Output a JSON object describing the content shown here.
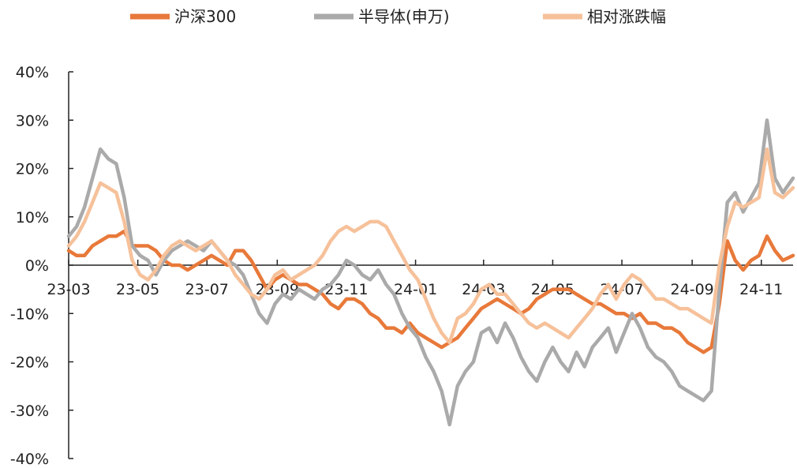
{
  "chart_data": {
    "type": "line",
    "title": "",
    "xlabel": "",
    "ylabel": "",
    "ylim": [
      -40,
      40
    ],
    "yticks": [
      -40,
      -30,
      -20,
      -10,
      0,
      10,
      20,
      30,
      40
    ],
    "ytick_labels": [
      "-40%",
      "-30%",
      "-20%",
      "-10%",
      "0%",
      "10%",
      "20%",
      "30%",
      "40%"
    ],
    "xlim": [
      "2023-03-01",
      "2024-11-29"
    ],
    "xticks": [
      "2023-03-01",
      "2023-05-01",
      "2023-07-01",
      "2023-09-01",
      "2023-11-01",
      "2024-01-01",
      "2024-03-01",
      "2024-05-01",
      "2024-07-01",
      "2024-09-01",
      "2024-11-01"
    ],
    "xtick_labels": [
      "23-03",
      "23-05",
      "23-07",
      "23-09",
      "23-11",
      "24-01",
      "24-03",
      "24-05",
      "24-07",
      "24-09",
      "24-11"
    ],
    "legend_position": "top",
    "grid": false,
    "series": [
      {
        "name": "沪深300",
        "color": "#E8793A",
        "points": [
          [
            "2023-03-01",
            3
          ],
          [
            "2023-03-08",
            2
          ],
          [
            "2023-03-15",
            2
          ],
          [
            "2023-03-22",
            4
          ],
          [
            "2023-03-29",
            5
          ],
          [
            "2023-04-05",
            6
          ],
          [
            "2023-04-12",
            6
          ],
          [
            "2023-04-19",
            7
          ],
          [
            "2023-04-26",
            4
          ],
          [
            "2023-05-03",
            4
          ],
          [
            "2023-05-10",
            4
          ],
          [
            "2023-05-17",
            3
          ],
          [
            "2023-05-24",
            1
          ],
          [
            "2023-05-31",
            0
          ],
          [
            "2023-06-07",
            0
          ],
          [
            "2023-06-14",
            -1
          ],
          [
            "2023-06-21",
            0
          ],
          [
            "2023-06-28",
            1
          ],
          [
            "2023-07-05",
            2
          ],
          [
            "2023-07-12",
            1
          ],
          [
            "2023-07-19",
            0
          ],
          [
            "2023-07-26",
            3
          ],
          [
            "2023-08-02",
            3
          ],
          [
            "2023-08-09",
            1
          ],
          [
            "2023-08-16",
            -2
          ],
          [
            "2023-08-23",
            -5
          ],
          [
            "2023-08-30",
            -3
          ],
          [
            "2023-09-06",
            -2
          ],
          [
            "2023-09-13",
            -3
          ],
          [
            "2023-09-20",
            -4
          ],
          [
            "2023-09-27",
            -4
          ],
          [
            "2023-10-04",
            -5
          ],
          [
            "2023-10-11",
            -6
          ],
          [
            "2023-10-18",
            -8
          ],
          [
            "2023-10-25",
            -9
          ],
          [
            "2023-11-01",
            -7
          ],
          [
            "2023-11-08",
            -7
          ],
          [
            "2023-11-15",
            -8
          ],
          [
            "2023-11-22",
            -10
          ],
          [
            "2023-11-29",
            -11
          ],
          [
            "2023-12-06",
            -13
          ],
          [
            "2023-12-13",
            -13
          ],
          [
            "2023-12-20",
            -14
          ],
          [
            "2023-12-27",
            -12
          ],
          [
            "2024-01-03",
            -14
          ],
          [
            "2024-01-10",
            -15
          ],
          [
            "2024-01-17",
            -16
          ],
          [
            "2024-01-24",
            -17
          ],
          [
            "2024-01-31",
            -16
          ],
          [
            "2024-02-07",
            -15
          ],
          [
            "2024-02-14",
            -13
          ],
          [
            "2024-02-21",
            -11
          ],
          [
            "2024-02-28",
            -9
          ],
          [
            "2024-03-06",
            -8
          ],
          [
            "2024-03-13",
            -7
          ],
          [
            "2024-03-20",
            -8
          ],
          [
            "2024-03-27",
            -9
          ],
          [
            "2024-04-03",
            -10
          ],
          [
            "2024-04-10",
            -9
          ],
          [
            "2024-04-17",
            -7
          ],
          [
            "2024-04-24",
            -6
          ],
          [
            "2024-05-01",
            -5
          ],
          [
            "2024-05-08",
            -5
          ],
          [
            "2024-05-15",
            -5
          ],
          [
            "2024-05-22",
            -6
          ],
          [
            "2024-05-29",
            -7
          ],
          [
            "2024-06-05",
            -8
          ],
          [
            "2024-06-12",
            -8
          ],
          [
            "2024-06-19",
            -9
          ],
          [
            "2024-06-26",
            -10
          ],
          [
            "2024-07-03",
            -10
          ],
          [
            "2024-07-10",
            -11
          ],
          [
            "2024-07-17",
            -10
          ],
          [
            "2024-07-24",
            -12
          ],
          [
            "2024-07-31",
            -12
          ],
          [
            "2024-08-07",
            -13
          ],
          [
            "2024-08-14",
            -13
          ],
          [
            "2024-08-21",
            -14
          ],
          [
            "2024-08-28",
            -16
          ],
          [
            "2024-09-04",
            -17
          ],
          [
            "2024-09-11",
            -18
          ],
          [
            "2024-09-18",
            -17
          ],
          [
            "2024-09-25",
            -8
          ],
          [
            "2024-10-02",
            5
          ],
          [
            "2024-10-09",
            1
          ],
          [
            "2024-10-16",
            -1
          ],
          [
            "2024-10-23",
            1
          ],
          [
            "2024-10-30",
            2
          ],
          [
            "2024-11-06",
            6
          ],
          [
            "2024-11-13",
            3
          ],
          [
            "2024-11-20",
            1
          ],
          [
            "2024-11-29",
            2
          ]
        ]
      },
      {
        "name": "半导体(申万)",
        "color": "#AAAAAA",
        "points": [
          [
            "2023-03-01",
            6
          ],
          [
            "2023-03-08",
            8
          ],
          [
            "2023-03-15",
            12
          ],
          [
            "2023-03-22",
            18
          ],
          [
            "2023-03-29",
            24
          ],
          [
            "2023-04-05",
            22
          ],
          [
            "2023-04-12",
            21
          ],
          [
            "2023-04-19",
            14
          ],
          [
            "2023-04-26",
            4
          ],
          [
            "2023-05-03",
            2
          ],
          [
            "2023-05-10",
            1
          ],
          [
            "2023-05-17",
            -2
          ],
          [
            "2023-05-24",
            1
          ],
          [
            "2023-05-31",
            3
          ],
          [
            "2023-06-07",
            4
          ],
          [
            "2023-06-14",
            5
          ],
          [
            "2023-06-21",
            4
          ],
          [
            "2023-06-28",
            3
          ],
          [
            "2023-07-05",
            5
          ],
          [
            "2023-07-12",
            3
          ],
          [
            "2023-07-19",
            1
          ],
          [
            "2023-07-26",
            0
          ],
          [
            "2023-08-02",
            -2
          ],
          [
            "2023-08-09",
            -6
          ],
          [
            "2023-08-16",
            -10
          ],
          [
            "2023-08-23",
            -12
          ],
          [
            "2023-08-30",
            -8
          ],
          [
            "2023-09-06",
            -6
          ],
          [
            "2023-09-13",
            -7
          ],
          [
            "2023-09-20",
            -5
          ],
          [
            "2023-09-27",
            -6
          ],
          [
            "2023-10-04",
            -7
          ],
          [
            "2023-10-11",
            -5
          ],
          [
            "2023-10-18",
            -4
          ],
          [
            "2023-10-25",
            -2
          ],
          [
            "2023-11-01",
            1
          ],
          [
            "2023-11-08",
            0
          ],
          [
            "2023-11-15",
            -2
          ],
          [
            "2023-11-22",
            -3
          ],
          [
            "2023-11-29",
            -1
          ],
          [
            "2023-12-06",
            -4
          ],
          [
            "2023-12-13",
            -6
          ],
          [
            "2023-12-20",
            -10
          ],
          [
            "2023-12-27",
            -13
          ],
          [
            "2024-01-03",
            -15
          ],
          [
            "2024-01-10",
            -19
          ],
          [
            "2024-01-17",
            -22
          ],
          [
            "2024-01-24",
            -26
          ],
          [
            "2024-01-31",
            -33
          ],
          [
            "2024-02-07",
            -25
          ],
          [
            "2024-02-14",
            -22
          ],
          [
            "2024-02-21",
            -20
          ],
          [
            "2024-02-28",
            -14
          ],
          [
            "2024-03-06",
            -13
          ],
          [
            "2024-03-13",
            -16
          ],
          [
            "2024-03-20",
            -12
          ],
          [
            "2024-03-27",
            -15
          ],
          [
            "2024-04-03",
            -19
          ],
          [
            "2024-04-10",
            -22
          ],
          [
            "2024-04-17",
            -24
          ],
          [
            "2024-04-24",
            -20
          ],
          [
            "2024-05-01",
            -17
          ],
          [
            "2024-05-08",
            -20
          ],
          [
            "2024-05-15",
            -22
          ],
          [
            "2024-05-22",
            -18
          ],
          [
            "2024-05-29",
            -21
          ],
          [
            "2024-06-05",
            -17
          ],
          [
            "2024-06-12",
            -15
          ],
          [
            "2024-06-19",
            -13
          ],
          [
            "2024-06-26",
            -18
          ],
          [
            "2024-07-03",
            -14
          ],
          [
            "2024-07-10",
            -10
          ],
          [
            "2024-07-17",
            -13
          ],
          [
            "2024-07-24",
            -17
          ],
          [
            "2024-07-31",
            -19
          ],
          [
            "2024-08-07",
            -20
          ],
          [
            "2024-08-14",
            -22
          ],
          [
            "2024-08-21",
            -25
          ],
          [
            "2024-08-28",
            -26
          ],
          [
            "2024-09-04",
            -27
          ],
          [
            "2024-09-11",
            -28
          ],
          [
            "2024-09-18",
            -26
          ],
          [
            "2024-09-25",
            -5
          ],
          [
            "2024-10-02",
            13
          ],
          [
            "2024-10-09",
            15
          ],
          [
            "2024-10-16",
            11
          ],
          [
            "2024-10-23",
            14
          ],
          [
            "2024-10-30",
            17
          ],
          [
            "2024-11-06",
            30
          ],
          [
            "2024-11-13",
            18
          ],
          [
            "2024-11-20",
            15
          ],
          [
            "2024-11-29",
            18
          ]
        ]
      },
      {
        "name": "相对涨跌幅",
        "color": "#F6C19A",
        "points": [
          [
            "2023-03-01",
            4
          ],
          [
            "2023-03-08",
            6
          ],
          [
            "2023-03-15",
            9
          ],
          [
            "2023-03-22",
            13
          ],
          [
            "2023-03-29",
            17
          ],
          [
            "2023-04-05",
            16
          ],
          [
            "2023-04-12",
            15
          ],
          [
            "2023-04-19",
            9
          ],
          [
            "2023-04-26",
            1
          ],
          [
            "2023-05-03",
            -2
          ],
          [
            "2023-05-10",
            -3
          ],
          [
            "2023-05-17",
            -1
          ],
          [
            "2023-05-24",
            2
          ],
          [
            "2023-05-31",
            4
          ],
          [
            "2023-06-07",
            5
          ],
          [
            "2023-06-14",
            4
          ],
          [
            "2023-06-21",
            3
          ],
          [
            "2023-06-28",
            4
          ],
          [
            "2023-07-05",
            5
          ],
          [
            "2023-07-12",
            3
          ],
          [
            "2023-07-19",
            1
          ],
          [
            "2023-07-26",
            -2
          ],
          [
            "2023-08-02",
            -4
          ],
          [
            "2023-08-09",
            -6
          ],
          [
            "2023-08-16",
            -7
          ],
          [
            "2023-08-23",
            -5
          ],
          [
            "2023-08-30",
            -2
          ],
          [
            "2023-09-06",
            -1
          ],
          [
            "2023-09-13",
            -3
          ],
          [
            "2023-09-20",
            -2
          ],
          [
            "2023-09-27",
            -1
          ],
          [
            "2023-10-04",
            0
          ],
          [
            "2023-10-11",
            2
          ],
          [
            "2023-10-18",
            5
          ],
          [
            "2023-10-25",
            7
          ],
          [
            "2023-11-01",
            8
          ],
          [
            "2023-11-08",
            7
          ],
          [
            "2023-11-15",
            8
          ],
          [
            "2023-11-22",
            9
          ],
          [
            "2023-11-29",
            9
          ],
          [
            "2023-12-06",
            8
          ],
          [
            "2023-12-13",
            5
          ],
          [
            "2023-12-20",
            2
          ],
          [
            "2023-12-27",
            -1
          ],
          [
            "2024-01-03",
            -3
          ],
          [
            "2024-01-10",
            -7
          ],
          [
            "2024-01-17",
            -11
          ],
          [
            "2024-01-24",
            -14
          ],
          [
            "2024-01-31",
            -16
          ],
          [
            "2024-02-07",
            -11
          ],
          [
            "2024-02-14",
            -10
          ],
          [
            "2024-02-21",
            -8
          ],
          [
            "2024-02-28",
            -5
          ],
          [
            "2024-03-06",
            -4
          ],
          [
            "2024-03-13",
            -6
          ],
          [
            "2024-03-20",
            -6
          ],
          [
            "2024-03-27",
            -8
          ],
          [
            "2024-04-03",
            -10
          ],
          [
            "2024-04-10",
            -12
          ],
          [
            "2024-04-17",
            -13
          ],
          [
            "2024-04-24",
            -12
          ],
          [
            "2024-05-01",
            -13
          ],
          [
            "2024-05-08",
            -14
          ],
          [
            "2024-05-15",
            -15
          ],
          [
            "2024-05-22",
            -13
          ],
          [
            "2024-05-29",
            -11
          ],
          [
            "2024-06-05",
            -9
          ],
          [
            "2024-06-12",
            -6
          ],
          [
            "2024-06-19",
            -4
          ],
          [
            "2024-06-26",
            -7
          ],
          [
            "2024-07-03",
            -4
          ],
          [
            "2024-07-10",
            -2
          ],
          [
            "2024-07-17",
            -3
          ],
          [
            "2024-07-24",
            -5
          ],
          [
            "2024-07-31",
            -7
          ],
          [
            "2024-08-07",
            -7
          ],
          [
            "2024-08-14",
            -8
          ],
          [
            "2024-08-21",
            -9
          ],
          [
            "2024-08-28",
            -9
          ],
          [
            "2024-09-04",
            -10
          ],
          [
            "2024-09-11",
            -11
          ],
          [
            "2024-09-18",
            -12
          ],
          [
            "2024-09-25",
            0
          ],
          [
            "2024-10-02",
            8
          ],
          [
            "2024-10-09",
            13
          ],
          [
            "2024-10-16",
            12
          ],
          [
            "2024-10-23",
            13
          ],
          [
            "2024-10-30",
            14
          ],
          [
            "2024-11-06",
            24
          ],
          [
            "2024-11-13",
            15
          ],
          [
            "2024-11-20",
            14
          ],
          [
            "2024-11-29",
            16
          ]
        ]
      }
    ]
  }
}
